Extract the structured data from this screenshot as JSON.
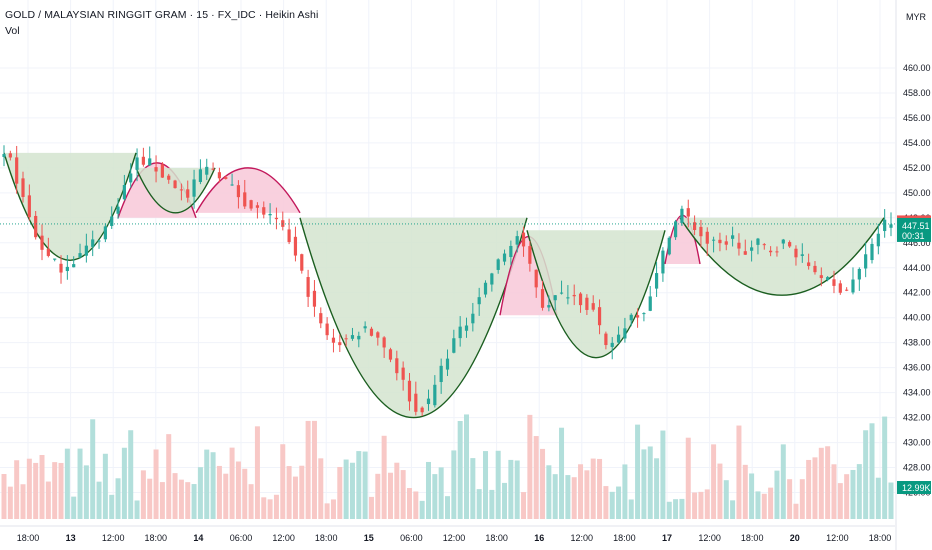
{
  "header": {
    "title": "GOLD / MALAYSIAN RINGGIT GRAM · 15 · FX_IDC · Heikin Ashi",
    "volume_label": "Vol"
  },
  "colors": {
    "up": "#26a69a",
    "down": "#ef5350",
    "vol_up": "#b2dfdb",
    "vol_down": "#f8c8c6",
    "cup_fill": "#d3e4cf",
    "cup_line": "#1b5e20",
    "cap_fill": "#f8c8d8",
    "cap_line": "#c2185b",
    "last_price": "#ef5350",
    "current_price": "#089981",
    "volume_badge": "#089981"
  },
  "chart_data": {
    "type": "candlestick",
    "style": "Heikin Ashi",
    "symbol": "GOLD / MALAYSIAN RINGGIT GRAM",
    "interval": "15",
    "source": "FX_IDC",
    "currency": "MYR",
    "ylim": [
      425,
      462
    ],
    "y_ticks": [
      "460.00",
      "458.00",
      "456.00",
      "454.00",
      "452.00",
      "450.00",
      "448.00",
      "446.00",
      "444.00",
      "442.00",
      "440.00",
      "438.00",
      "436.00",
      "434.00",
      "432.00",
      "430.00",
      "428.00",
      "426.00"
    ],
    "x_ticks": [
      {
        "label": "18:00",
        "bold": false
      },
      {
        "label": "13",
        "bold": true
      },
      {
        "label": "12:00",
        "bold": false
      },
      {
        "label": "18:00",
        "bold": false
      },
      {
        "label": "14",
        "bold": true
      },
      {
        "label": "06:00",
        "bold": false
      },
      {
        "label": "12:00",
        "bold": false
      },
      {
        "label": "18:00",
        "bold": false
      },
      {
        "label": "15",
        "bold": true
      },
      {
        "label": "06:00",
        "bold": false
      },
      {
        "label": "12:00",
        "bold": false
      },
      {
        "label": "18:00",
        "bold": false
      },
      {
        "label": "16",
        "bold": true
      },
      {
        "label": "12:00",
        "bold": false
      },
      {
        "label": "18:00",
        "bold": false
      },
      {
        "label": "17",
        "bold": true
      },
      {
        "label": "12:00",
        "bold": false
      },
      {
        "label": "18:00",
        "bold": false
      },
      {
        "label": "20",
        "bold": true
      },
      {
        "label": "12:00",
        "bold": false
      },
      {
        "label": "18:00",
        "bold": false
      }
    ],
    "price_path": [
      [
        0,
        453.0
      ],
      [
        2,
        452.6
      ],
      [
        4,
        449.5
      ],
      [
        6,
        446.5
      ],
      [
        8,
        444.8
      ],
      [
        10,
        444.0
      ],
      [
        12,
        444.6
      ],
      [
        14,
        445.6
      ],
      [
        16,
        446.5
      ],
      [
        18,
        448.0
      ],
      [
        20,
        450.5
      ],
      [
        22,
        452.6
      ],
      [
        24,
        452.4
      ],
      [
        26,
        451.4
      ],
      [
        28,
        450.6
      ],
      [
        30,
        449.6
      ],
      [
        32,
        451.8
      ],
      [
        34,
        452.0
      ],
      [
        36,
        451.0
      ],
      [
        38,
        449.8
      ],
      [
        40,
        448.8
      ],
      [
        42,
        448.4
      ],
      [
        44,
        447.6
      ],
      [
        46,
        446.2
      ],
      [
        48,
        443.5
      ],
      [
        50,
        440.6
      ],
      [
        52,
        438.4
      ],
      [
        54,
        438.0
      ],
      [
        56,
        438.5
      ],
      [
        58,
        439.2
      ],
      [
        60,
        438.5
      ],
      [
        62,
        436.8
      ],
      [
        64,
        434.8
      ],
      [
        66,
        432.4
      ],
      [
        68,
        433.2
      ],
      [
        70,
        436.0
      ],
      [
        72,
        438.2
      ],
      [
        74,
        439.6
      ],
      [
        76,
        441.8
      ],
      [
        78,
        443.6
      ],
      [
        80,
        445.2
      ],
      [
        82,
        446.5
      ],
      [
        84,
        444.2
      ],
      [
        86,
        441.0
      ],
      [
        88,
        441.6
      ],
      [
        90,
        442.0
      ],
      [
        92,
        441.4
      ],
      [
        94,
        440.5
      ],
      [
        96,
        437.5
      ],
      [
        98,
        438.6
      ],
      [
        100,
        440.2
      ],
      [
        102,
        440.6
      ],
      [
        104,
        443.4
      ],
      [
        106,
        446.8
      ],
      [
        108,
        448.6
      ],
      [
        110,
        447.2
      ],
      [
        112,
        446.0
      ],
      [
        114,
        445.8
      ],
      [
        116,
        446.4
      ],
      [
        118,
        445.0
      ],
      [
        120,
        446.0
      ],
      [
        122,
        445.4
      ],
      [
        124,
        446.0
      ],
      [
        126,
        445.2
      ],
      [
        128,
        444.2
      ],
      [
        130,
        443.4
      ],
      [
        132,
        442.4
      ],
      [
        134,
        442.3
      ],
      [
        136,
        443.8
      ],
      [
        138,
        446.0
      ],
      [
        140,
        447.6
      ]
    ],
    "bar_count": 141,
    "last_price": "447.63",
    "current_price": "447.51",
    "countdown": "00:31",
    "volume_label": "12.99K",
    "patterns": {
      "cups": [
        {
          "x1": 446.8,
          "x2": 453.2,
          "y_rim": 453.2,
          "y_bottom": 444.6,
          "from_date": "12",
          "to_date": "13"
        },
        {
          "y_rim": 452.0,
          "y_bottom": 448.4
        },
        {
          "y_rim": 448.0,
          "y_bottom": 432.0
        },
        {
          "y_rim": 447.0,
          "y_bottom": 436.8
        },
        {
          "y_rim": 448.0,
          "y_bottom": 441.8
        }
      ],
      "caps": [
        {
          "y_base": 448.0,
          "y_top": 452.4
        },
        {
          "y_base": 448.4,
          "y_top": 452.0
        },
        {
          "y_base": 440.2,
          "y_top": 446.5
        },
        {
          "y_base": 444.3,
          "y_top": 448.2
        }
      ]
    }
  }
}
